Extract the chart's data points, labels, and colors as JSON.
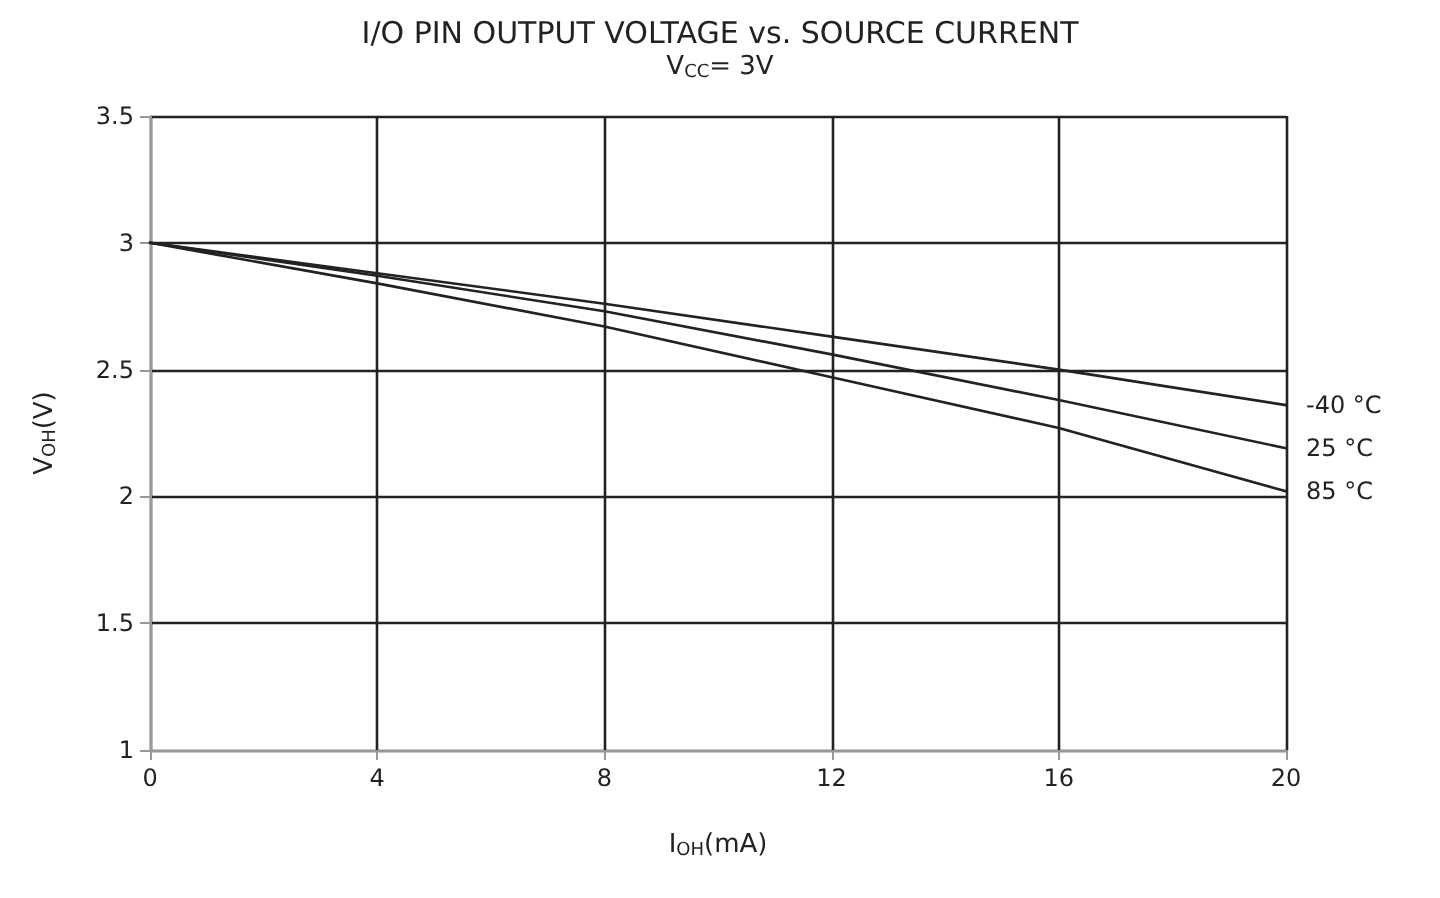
{
  "chart_data": {
    "type": "line",
    "title": "I/O PIN OUTPUT VOLTAGE vs. SOURCE CURRENT",
    "subtitle": "V$_{CC}$= 3V",
    "xlabel": "I$_{OH}$(mA)",
    "ylabel": "V$_{OH}$(V)",
    "x": [
      0,
      4,
      8,
      12,
      16,
      20
    ],
    "series": [
      {
        "name": "-40 °C",
        "color": "#222222",
        "values": [
          3,
          2.88,
          2.76,
          2.63,
          2.5,
          2.36
        ]
      },
      {
        "name": "25 °C",
        "color": "#222222",
        "values": [
          3,
          2.87,
          2.73,
          2.56,
          2.38,
          2.19
        ]
      },
      {
        "name": "85 °C",
        "color": "#222222",
        "values": [
          3,
          2.84,
          2.67,
          2.47,
          2.27,
          2.02
        ]
      }
    ],
    "xlim": [
      0,
      20
    ],
    "xticks": [
      0,
      4,
      8,
      12,
      16,
      20
    ],
    "ylim": [
      1,
      3.5
    ],
    "yticks": [
      1,
      1.5,
      2,
      2.5,
      3,
      3.5
    ],
    "grid": true,
    "legend": false,
    "marker": "none",
    "line_style": "solid"
  }
}
